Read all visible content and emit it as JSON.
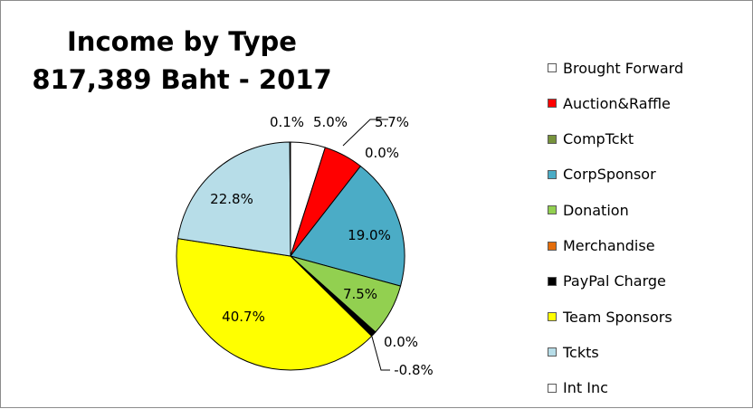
{
  "chart_data": {
    "type": "pie",
    "title": [
      "Income by Type",
      "817,389 Baht - 2017"
    ],
    "legend_position": "right",
    "slices": [
      {
        "name": "Brought Forward",
        "value": 5.0,
        "label": "5.0%",
        "color": "#ffffff"
      },
      {
        "name": "Auction&Raffle",
        "value": 5.7,
        "label": "5.7%",
        "color": "#ff0000"
      },
      {
        "name": "CompTckt",
        "value": 0.0,
        "label": "0.0%",
        "color": "#77933c"
      },
      {
        "name": "CorpSponsor",
        "value": 19.0,
        "label": "19.0%",
        "color": "#4bacc6"
      },
      {
        "name": "Donation",
        "value": 7.5,
        "label": "7.5%",
        "color": "#92d050"
      },
      {
        "name": "Merchandise",
        "value": 0.0,
        "label": "0.0%",
        "color": "#e46c0a"
      },
      {
        "name": "PayPal Charge",
        "value": -0.8,
        "label": "-0.8%",
        "color": "#000000"
      },
      {
        "name": "Team Sponsors",
        "value": 40.7,
        "label": "40.7%",
        "color": "#ffff00"
      },
      {
        "name": "Tckts",
        "value": 22.8,
        "label": "22.8%",
        "color": "#b7dde8"
      },
      {
        "name": "Int Inc",
        "value": 0.1,
        "label": "0.1%",
        "color": "#ffffff"
      }
    ]
  }
}
